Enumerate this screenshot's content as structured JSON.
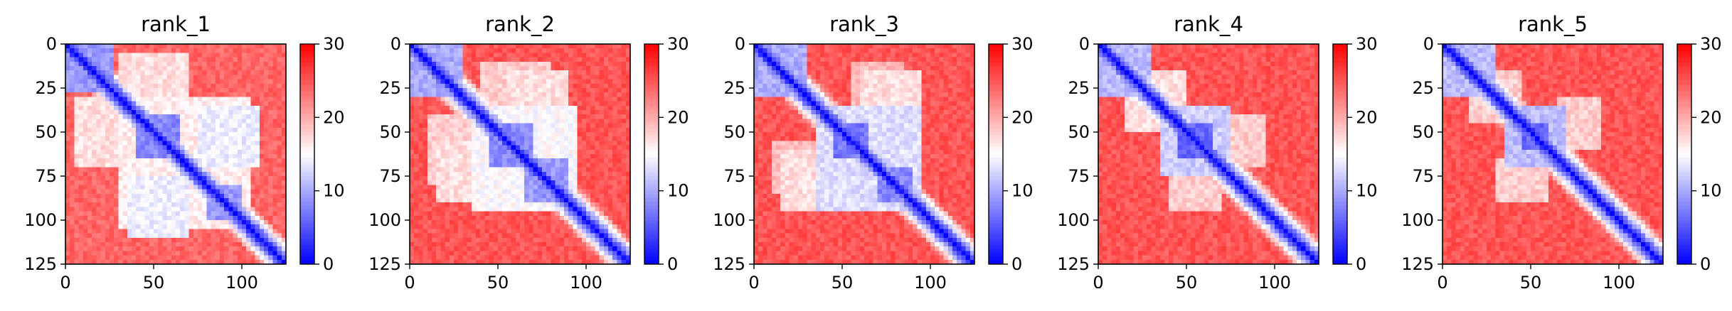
{
  "chart_data": [
    {
      "type": "heatmap",
      "title": "rank_1",
      "xlabel": "",
      "ylabel": "",
      "xlim": [
        0,
        125
      ],
      "ylim": [
        125,
        0
      ],
      "x_ticks": [
        0,
        50,
        100
      ],
      "y_ticks": [
        0,
        25,
        50,
        75,
        100,
        125
      ],
      "colorbar": {
        "min": 0,
        "max": 30,
        "ticks": [
          0,
          10,
          20,
          30
        ],
        "colormap": "bwr"
      },
      "diagonal_value": 0,
      "background_value": 24,
      "blocks": [
        {
          "rows": [
            0,
            28
          ],
          "cols": [
            0,
            28
          ],
          "value": 9
        },
        {
          "rows": [
            5,
            30
          ],
          "cols": [
            30,
            70
          ],
          "value": 17
        },
        {
          "rows": [
            30,
            105
          ],
          "cols": [
            30,
            105
          ],
          "value": 16
        },
        {
          "rows": [
            40,
            65
          ],
          "cols": [
            40,
            65
          ],
          "value": 8
        },
        {
          "rows": [
            80,
            100
          ],
          "cols": [
            80,
            100
          ],
          "value": 9
        },
        {
          "rows": [
            35,
            70
          ],
          "cols": [
            75,
            110
          ],
          "value": 14
        },
        {
          "rows": [
            105,
            125
          ],
          "cols": [
            0,
            125
          ],
          "value": 30
        }
      ]
    },
    {
      "type": "heatmap",
      "title": "rank_2",
      "xlabel": "",
      "ylabel": "",
      "xlim": [
        0,
        125
      ],
      "ylim": [
        125,
        0
      ],
      "x_ticks": [
        0,
        50,
        100
      ],
      "y_ticks": [
        0,
        25,
        50,
        75,
        100,
        125
      ],
      "colorbar": {
        "min": 0,
        "max": 30,
        "ticks": [
          0,
          10,
          20,
          30
        ],
        "colormap": "bwr"
      },
      "diagonal_value": 0,
      "background_value": 25,
      "blocks": [
        {
          "rows": [
            0,
            30
          ],
          "cols": [
            0,
            30
          ],
          "value": 10
        },
        {
          "rows": [
            10,
            40
          ],
          "cols": [
            40,
            80
          ],
          "value": 18
        },
        {
          "rows": [
            35,
            95
          ],
          "cols": [
            35,
            95
          ],
          "value": 15
        },
        {
          "rows": [
            45,
            70
          ],
          "cols": [
            45,
            70
          ],
          "value": 8
        },
        {
          "rows": [
            65,
            90
          ],
          "cols": [
            65,
            90
          ],
          "value": 9
        },
        {
          "rows": [
            55,
            90
          ],
          "cols": [
            15,
            45
          ],
          "value": 17
        }
      ]
    },
    {
      "type": "heatmap",
      "title": "rank_3",
      "xlabel": "",
      "ylabel": "",
      "xlim": [
        0,
        125
      ],
      "ylim": [
        125,
        0
      ],
      "x_ticks": [
        0,
        50,
        100
      ],
      "y_ticks": [
        0,
        25,
        50,
        75,
        100,
        125
      ],
      "colorbar": {
        "min": 0,
        "max": 30,
        "ticks": [
          0,
          10,
          20,
          30
        ],
        "colormap": "bwr"
      },
      "diagonal_value": 0,
      "background_value": 25,
      "blocks": [
        {
          "rows": [
            0,
            30
          ],
          "cols": [
            0,
            30
          ],
          "value": 10
        },
        {
          "rows": [
            35,
            95
          ],
          "cols": [
            35,
            95
          ],
          "value": 13
        },
        {
          "rows": [
            45,
            65
          ],
          "cols": [
            45,
            65
          ],
          "value": 7
        },
        {
          "rows": [
            70,
            90
          ],
          "cols": [
            70,
            90
          ],
          "value": 8
        },
        {
          "rows": [
            60,
            95
          ],
          "cols": [
            15,
            50
          ],
          "value": 17
        },
        {
          "rows": [
            10,
            40
          ],
          "cols": [
            55,
            85
          ],
          "value": 19
        }
      ]
    },
    {
      "type": "heatmap",
      "title": "rank_4",
      "xlabel": "",
      "ylabel": "",
      "xlim": [
        0,
        125
      ],
      "ylim": [
        125,
        0
      ],
      "x_ticks": [
        0,
        50,
        100
      ],
      "y_ticks": [
        0,
        25,
        50,
        75,
        100,
        125
      ],
      "colorbar": {
        "min": 0,
        "max": 30,
        "ticks": [
          0,
          10,
          20,
          30
        ],
        "colormap": "bwr"
      },
      "diagonal_value": 0,
      "background_value": 25,
      "blocks": [
        {
          "rows": [
            0,
            30
          ],
          "cols": [
            0,
            30
          ],
          "value": 11
        },
        {
          "rows": [
            35,
            75
          ],
          "cols": [
            35,
            75
          ],
          "value": 12
        },
        {
          "rows": [
            45,
            65
          ],
          "cols": [
            45,
            65
          ],
          "value": 6
        },
        {
          "rows": [
            15,
            50
          ],
          "cols": [
            15,
            50
          ],
          "value": 17
        },
        {
          "rows": [
            70,
            95
          ],
          "cols": [
            40,
            70
          ],
          "value": 18
        }
      ]
    },
    {
      "type": "heatmap",
      "title": "rank_5",
      "xlabel": "",
      "ylabel": "",
      "xlim": [
        0,
        125
      ],
      "ylim": [
        125,
        0
      ],
      "x_ticks": [
        0,
        50,
        100
      ],
      "y_ticks": [
        0,
        25,
        50,
        75,
        100,
        125
      ],
      "colorbar": {
        "min": 0,
        "max": 30,
        "ticks": [
          0,
          10,
          20,
          30
        ],
        "colormap": "bwr"
      },
      "diagonal_value": 0,
      "background_value": 25,
      "blocks": [
        {
          "rows": [
            0,
            30
          ],
          "cols": [
            0,
            30
          ],
          "value": 11
        },
        {
          "rows": [
            35,
            70
          ],
          "cols": [
            35,
            70
          ],
          "value": 11
        },
        {
          "rows": [
            45,
            60
          ],
          "cols": [
            45,
            60
          ],
          "value": 6
        },
        {
          "rows": [
            15,
            45
          ],
          "cols": [
            15,
            45
          ],
          "value": 18
        },
        {
          "rows": [
            65,
            90
          ],
          "cols": [
            30,
            60
          ],
          "value": 18
        }
      ]
    }
  ]
}
